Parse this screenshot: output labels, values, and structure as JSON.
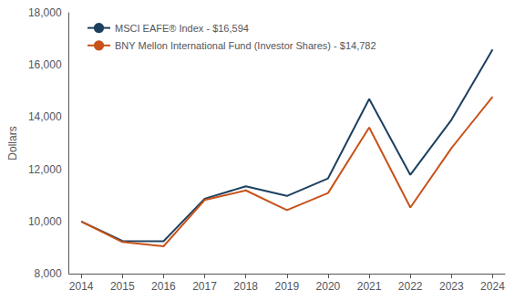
{
  "chart_data": {
    "type": "line",
    "x": [
      2014,
      2015,
      2016,
      2017,
      2018,
      2019,
      2020,
      2021,
      2022,
      2023,
      2024
    ],
    "series": [
      {
        "name": "MSCI EAFE® Index - $16,594",
        "color": "#1d4060",
        "values": [
          10000,
          9253,
          9242,
          10872,
          11349,
          10979,
          11652,
          14696,
          11786,
          13898,
          16594
        ]
      },
      {
        "name": "BNY Mellon International Fund (Investor Shares) - $14,782",
        "color": "#c8521a",
        "values": [
          10000,
          9212,
          9048,
          10821,
          11190,
          10436,
          11091,
          13604,
          10534,
          12814,
          14782
        ]
      }
    ],
    "ylabel": "Dollars",
    "xlim": [
      2013.7,
      2024.3
    ],
    "xticks": [
      2014,
      2015,
      2016,
      2017,
      2018,
      2019,
      2020,
      2021,
      2022,
      2023,
      2024
    ],
    "ylim": [
      8000,
      18000
    ],
    "yticks": [
      {
        "value": 8000,
        "label": "8,000"
      },
      {
        "value": 10000,
        "label": "10,000"
      },
      {
        "value": 12000,
        "label": "12,000"
      },
      {
        "value": 14000,
        "label": "14,000"
      },
      {
        "value": 16000,
        "label": "16,000"
      },
      {
        "value": 18000,
        "label": "18,000"
      }
    ],
    "grid": false,
    "legend": "upper left"
  }
}
